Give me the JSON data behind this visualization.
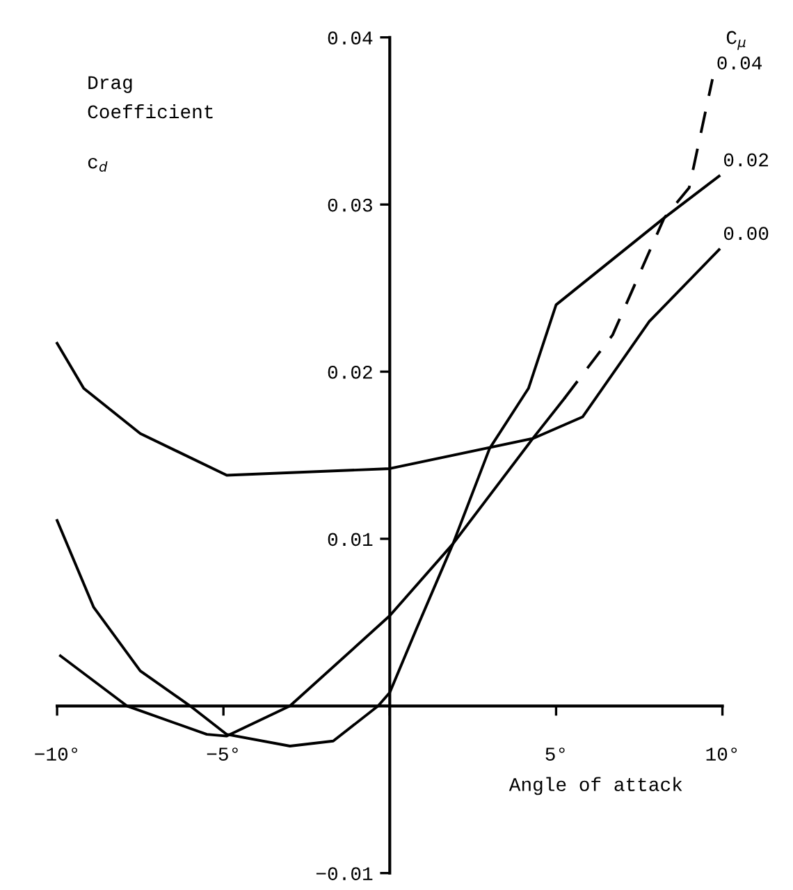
{
  "chart_data": {
    "type": "line",
    "xlabel": "Angle of attack",
    "ylabel": "Drag\nCoefficient\nc$_{d}$",
    "legend_title": "C$_{μ}$",
    "xlim": [
      -10,
      10
    ],
    "ylim": [
      -0.01,
      0.04
    ],
    "xticks": [
      {
        "value": -10,
        "label": "−10°"
      },
      {
        "value": -5,
        "label": "−5°"
      },
      {
        "value": 0,
        "label": null
      },
      {
        "value": 5,
        "label": "5°"
      },
      {
        "value": 10,
        "label": "10°"
      }
    ],
    "yticks": [
      {
        "value": -0.01,
        "label": "−0.01"
      },
      {
        "value": 0,
        "label": null
      },
      0.01,
      0.02,
      0.03,
      0.04
    ],
    "grid": false,
    "legend": false,
    "marker": "none",
    "series": [
      {
        "name": "0.00",
        "color": "#000000",
        "line_style": "solid",
        "x": [
          -10,
          -9.2,
          -7.5,
          -4.9,
          0,
          4.3,
          5.8,
          7.8,
          9.9
        ],
        "values": [
          0.0217,
          0.019,
          0.0163,
          0.0138,
          0.0142,
          0.016,
          0.0173,
          0.023,
          0.0273
        ]
      },
      {
        "name": "0.02",
        "color": "#000000",
        "line_style": "solid",
        "x": [
          -10,
          -8.9,
          -7.5,
          -6.0,
          -4.9,
          -3.0,
          -1.7,
          -0.35,
          0,
          0.8,
          1.9,
          3.0,
          4.17,
          5.0,
          8.25,
          9.9
        ],
        "values": [
          0.0111,
          0.0059,
          0.0021,
          0,
          -0.0017,
          -0.0024,
          -0.0021,
          0,
          0.0008,
          0.0046,
          0.0097,
          0.0154,
          0.019,
          0.024,
          0.0292,
          0.0317
        ]
      },
      {
        "color": "#000000",
        "line_style": "solid",
        "x": [
          -9.9,
          -7.9,
          -5.5,
          -4.9,
          -3.0,
          0,
          1.9,
          4.3,
          5.25
        ],
        "values": [
          0.003,
          0,
          -0.0017,
          -0.0018,
          0,
          0.0054,
          0.0097,
          0.016,
          0.0184
        ]
      },
      {
        "name": "0.04",
        "color": "#000000",
        "line_style": "dashed",
        "x": [
          5.25,
          6.7,
          8.25,
          9.0,
          9.7
        ],
        "values": [
          0.0184,
          0.0222,
          0.0292,
          0.031,
          0.0375
        ]
      }
    ]
  }
}
